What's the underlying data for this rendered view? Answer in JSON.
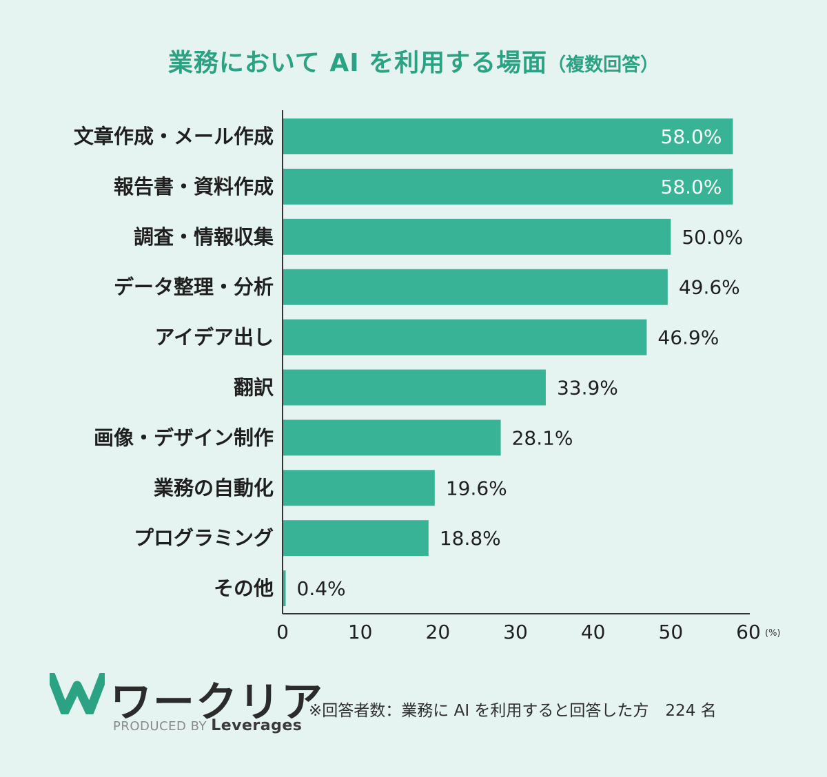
{
  "title": "業務において AI を利用する場面",
  "subtitle": "（複数回答）",
  "chart_data": {
    "type": "bar",
    "orientation": "horizontal",
    "categories": [
      "文章作成・メール作成",
      "報告書・資料作成",
      "調査・情報収集",
      "データ整理・分析",
      "アイデア出し",
      "翻訳",
      "画像・デザイン制作",
      "業務の自動化",
      "プログラミング",
      "その他"
    ],
    "values": [
      58.0,
      58.0,
      50.0,
      49.6,
      46.9,
      33.9,
      28.1,
      19.6,
      18.8,
      0.4
    ],
    "value_labels": [
      "58.0%",
      "58.0%",
      "50.0%",
      "49.6%",
      "46.9%",
      "33.9%",
      "28.1%",
      "19.6%",
      "18.8%",
      "0.4%"
    ],
    "xlim": [
      0,
      60
    ],
    "xticks": [
      0,
      10,
      20,
      30,
      40,
      50,
      60
    ],
    "xunit": "(%)",
    "bar_color": "#38b396",
    "grid": false
  },
  "logo": {
    "name": "ワークリア",
    "produced_by": "PRODUCED BY",
    "brand": "Leverages",
    "icon": "w-logo-icon",
    "color": "#2aa283"
  },
  "footnote": {
    "text": "※回答者数：業務に AI を利用すると回答した方",
    "count": "224 名"
  }
}
